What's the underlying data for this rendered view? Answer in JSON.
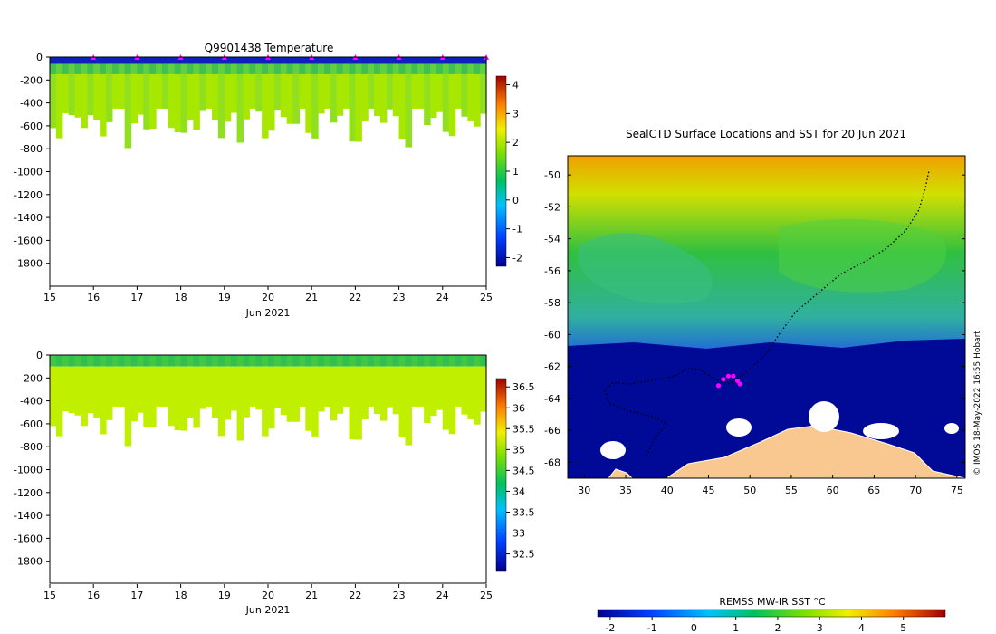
{
  "chart_data": [
    {
      "type": "heatmap",
      "title": "Q9901438  Temperature",
      "x_ticks": [
        "15",
        "16",
        "17",
        "18",
        "19",
        "20",
        "21",
        "22",
        "23",
        "24",
        "25"
      ],
      "x_range": [
        15,
        25
      ],
      "xlabel": "Jun 2021",
      "y_ticks": [
        "0",
        "-200",
        "-400",
        "-600",
        "-800",
        "-1000",
        "-1200",
        "-1400",
        "-1600",
        "-1800"
      ],
      "y_range": [
        0,
        -2000
      ],
      "profile_days": [
        16,
        17,
        18,
        19,
        20,
        21,
        22,
        23,
        24,
        25
      ],
      "colorbar": {
        "ticks": [
          "4",
          "3",
          "2",
          "1",
          "0",
          "-1",
          "-2"
        ],
        "range": [
          -2.3,
          4.3
        ]
      }
    },
    {
      "type": "heatmap",
      "title": "",
      "x_ticks": [
        "15",
        "16",
        "17",
        "18",
        "19",
        "20",
        "21",
        "22",
        "23",
        "24",
        "25"
      ],
      "x_range": [
        15,
        25
      ],
      "xlabel": "Jun 2021",
      "y_ticks": [
        "0",
        "-200",
        "-400",
        "-600",
        "-800",
        "-1000",
        "-1200",
        "-1400",
        "-1600",
        "-1800"
      ],
      "y_range": [
        0,
        -2000
      ],
      "colorbar": {
        "ticks": [
          "36.5",
          "36",
          "35.5",
          "35",
          "34.5",
          "34",
          "33.5",
          "33",
          "32.5"
        ],
        "range": [
          32.1,
          36.7
        ]
      }
    },
    {
      "type": "heatmap",
      "title": "SealCTD Surface Locations and SST for 20 Jun 2021",
      "x_ticks": [
        "30",
        "35",
        "40",
        "45",
        "50",
        "55",
        "60",
        "65",
        "70",
        "75"
      ],
      "x_range": [
        28,
        76
      ],
      "y_ticks": [
        "-50",
        "-52",
        "-54",
        "-56",
        "-58",
        "-60",
        "-62",
        "-64",
        "-66",
        "-68"
      ],
      "y_range": [
        -69,
        -48.8
      ],
      "track_points": [
        [
          71.6,
          -49.8
        ],
        [
          71.2,
          -50.8
        ],
        [
          70.4,
          -52.2
        ],
        [
          68.8,
          -53.5
        ],
        [
          66.5,
          -54.6
        ],
        [
          64,
          -55.4
        ],
        [
          61,
          -56.2
        ],
        [
          58,
          -57.5
        ],
        [
          55.5,
          -58.6
        ],
        [
          53.5,
          -60
        ],
        [
          52,
          -61.2
        ],
        [
          49.5,
          -62.4
        ],
        [
          47.5,
          -63.1
        ],
        [
          45.5,
          -62.7
        ],
        [
          44,
          -62.2
        ],
        [
          42.5,
          -62.1
        ],
        [
          41,
          -62.6
        ],
        [
          38,
          -62.9
        ],
        [
          35.5,
          -63.1
        ],
        [
          33.5,
          -63
        ],
        [
          32.5,
          -63.5
        ],
        [
          33,
          -64.3
        ],
        [
          35.5,
          -64.8
        ],
        [
          38,
          -65.1
        ],
        [
          40,
          -65.6
        ],
        [
          38.5,
          -66.5
        ],
        [
          37.5,
          -67.6
        ]
      ],
      "surface_locations": [
        [
          46.2,
          -63.2
        ],
        [
          46.8,
          -62.8
        ],
        [
          47.4,
          -62.6
        ],
        [
          48,
          -62.6
        ],
        [
          48.5,
          -62.9
        ],
        [
          48.8,
          -63.1
        ]
      ],
      "colorbar": {
        "label": "REMSS MW-IR SST °C",
        "ticks": [
          "-2",
          "-1",
          "0",
          "1",
          "2",
          "3",
          "4",
          "5"
        ],
        "range": [
          -2.3,
          6
        ]
      },
      "credit": "© IMOS 18-May-2022 16:55 Hobart"
    }
  ]
}
